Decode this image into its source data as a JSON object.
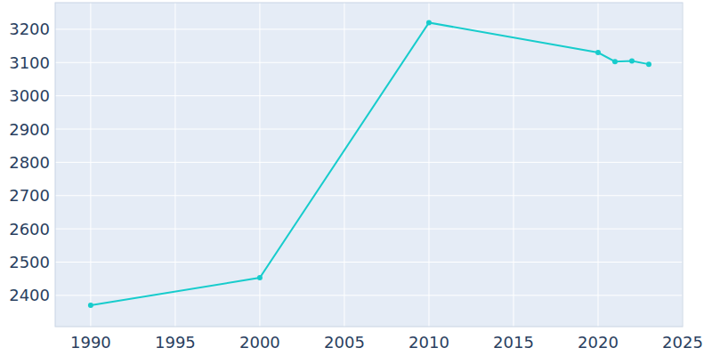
{
  "chart_data": {
    "type": "line",
    "x": [
      1990,
      2000,
      2010,
      2020,
      2021,
      2022,
      2023
    ],
    "values": [
      2370,
      2453,
      3220,
      3130,
      3103,
      3105,
      3095
    ],
    "color": "#17cccc",
    "marker": "circle",
    "xlim": [
      1987.9,
      2025
    ],
    "xticks": [
      1990,
      1995,
      2000,
      2005,
      2010,
      2015,
      2020,
      2025
    ],
    "ylim": [
      2306,
      3280
    ],
    "yticks": [
      2400,
      2500,
      2600,
      2700,
      2800,
      2900,
      3000,
      3100,
      3200
    ],
    "grid": true
  }
}
